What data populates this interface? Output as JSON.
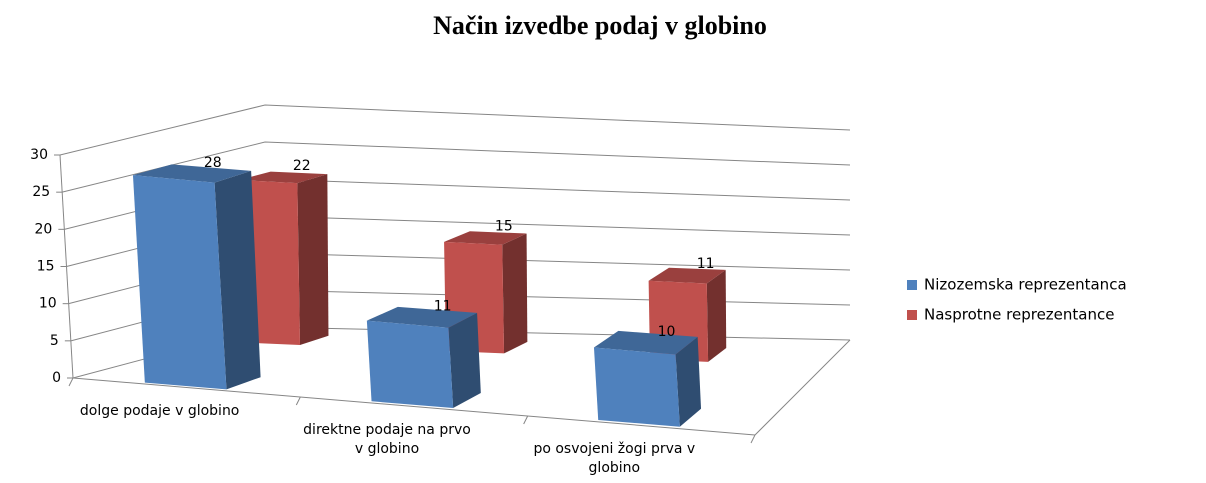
{
  "chart_data": {
    "type": "bar3d",
    "title": "Način izvedbe podaj v globino",
    "categories": [
      "dolge podaje v globino",
      "direktne podaje na prvo v globino",
      "po osvojeni žogi prva v globino"
    ],
    "series": [
      {
        "name": "Nizozemska reprezentanca",
        "color": "#4f81bd",
        "values": [
          28,
          11,
          10
        ]
      },
      {
        "name": "Nasprotne reprezentance",
        "color": "#c0504d",
        "values": [
          22,
          15,
          11
        ]
      }
    ],
    "ylim": [
      0,
      30
    ],
    "yticks": [
      0,
      5,
      10,
      15,
      20,
      25,
      30
    ],
    "grid": true,
    "legend": "right"
  }
}
